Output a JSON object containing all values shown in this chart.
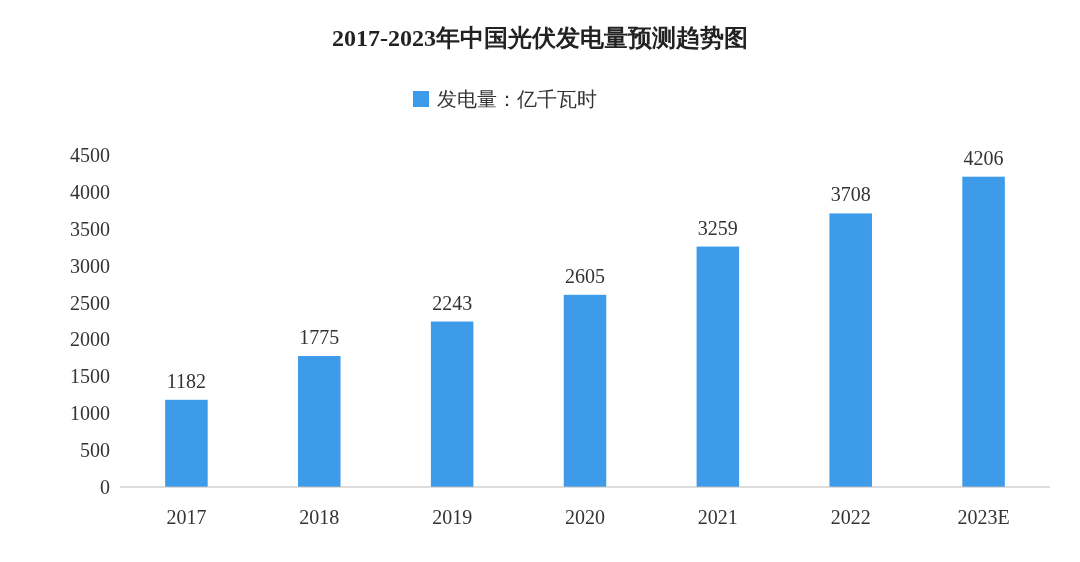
{
  "chart_data": {
    "type": "bar",
    "title": "2017-2023年中国光伏发电量预测趋势图",
    "categories": [
      "2017",
      "2018",
      "2019",
      "2020",
      "2021",
      "2022",
      "2023E"
    ],
    "series": [
      {
        "name": "发电量：亿千瓦时",
        "color": "#3d9be9",
        "values": [
          1182,
          1775,
          2243,
          2605,
          3259,
          3708,
          4206
        ]
      }
    ],
    "ylim": [
      0,
      4500
    ],
    "yticks": [
      0,
      500,
      1000,
      1500,
      2000,
      2500,
      3000,
      3500,
      4000,
      4500
    ],
    "data_labels": true,
    "legend": "top"
  }
}
